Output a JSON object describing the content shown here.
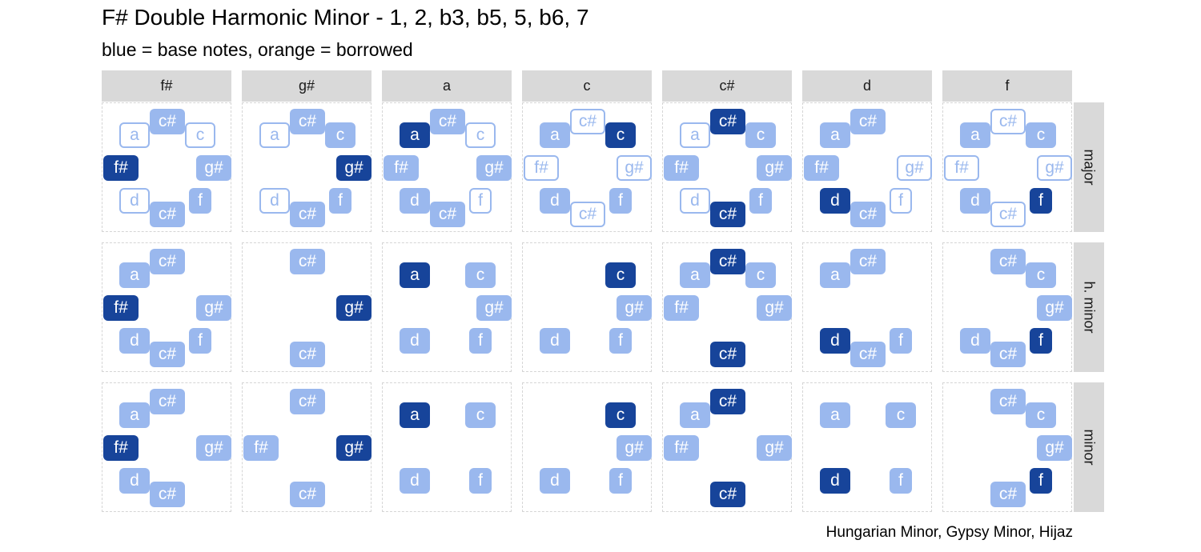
{
  "title": "F# Double Harmonic Minor - 1, 2, b3, b5, 5, b6, 7",
  "subtitle": "blue = base notes, orange = borrowed",
  "caption": "Hungarian Minor, Gypsy Minor, Hijaz",
  "colors": {
    "tonic": "#17449a",
    "base": "#9ab8ee",
    "outline_border": "#9ab8ee",
    "strip": "#d9d9d9"
  },
  "columns": [
    "f#",
    "g#",
    "a",
    "c",
    "c#",
    "d",
    "f"
  ],
  "rows": [
    "major",
    "h. minor",
    "minor"
  ],
  "panels": [
    [
      [
        [
          "a",
          "outline"
        ],
        [
          "c#",
          "base"
        ],
        [
          "c",
          "outline"
        ],
        [
          "f#",
          "tonic"
        ],
        [
          "g#",
          "base"
        ],
        [
          "d",
          "outline"
        ],
        [
          "f",
          "base"
        ],
        [
          "c#",
          "base"
        ]
      ],
      [
        [
          "a",
          "outline"
        ],
        [
          "c#",
          "base"
        ],
        [
          "c",
          "base"
        ],
        [
          "g#",
          "tonic"
        ],
        [
          "d",
          "outline"
        ],
        [
          "f",
          "base"
        ],
        [
          "c#",
          "base"
        ]
      ],
      [
        [
          "a",
          "tonic"
        ],
        [
          "c#",
          "base"
        ],
        [
          "c",
          "outline"
        ],
        [
          "f#",
          "base"
        ],
        [
          "g#",
          "base"
        ],
        [
          "d",
          "base"
        ],
        [
          "f",
          "outline"
        ],
        [
          "c#",
          "base"
        ]
      ],
      [
        [
          "a",
          "base"
        ],
        [
          "c#",
          "outline"
        ],
        [
          "c",
          "tonic"
        ],
        [
          "f#",
          "outline"
        ],
        [
          "g#",
          "outline"
        ],
        [
          "d",
          "base"
        ],
        [
          "f",
          "base"
        ],
        [
          "c#",
          "outline"
        ]
      ],
      [
        [
          "a",
          "outline"
        ],
        [
          "c#",
          "tonic"
        ],
        [
          "c",
          "base"
        ],
        [
          "f#",
          "base"
        ],
        [
          "g#",
          "base"
        ],
        [
          "d",
          "outline"
        ],
        [
          "f",
          "base"
        ],
        [
          "c#",
          "tonic"
        ]
      ],
      [
        [
          "a",
          "base"
        ],
        [
          "c#",
          "base"
        ],
        [
          "f#",
          "base"
        ],
        [
          "g#",
          "outline"
        ],
        [
          "d",
          "tonic"
        ],
        [
          "f",
          "outline"
        ],
        [
          "c#",
          "base"
        ]
      ],
      [
        [
          "a",
          "base"
        ],
        [
          "c#",
          "outline"
        ],
        [
          "c",
          "base"
        ],
        [
          "f#",
          "outline"
        ],
        [
          "g#",
          "outline"
        ],
        [
          "d",
          "base"
        ],
        [
          "f",
          "tonic"
        ],
        [
          "c#",
          "outline"
        ]
      ]
    ],
    [
      [
        [
          "a",
          "base"
        ],
        [
          "c#",
          "base"
        ],
        [
          "f#",
          "tonic"
        ],
        [
          "g#",
          "base"
        ],
        [
          "d",
          "base"
        ],
        [
          "f",
          "base"
        ],
        [
          "c#",
          "base"
        ]
      ],
      [
        [
          "c#",
          "base"
        ],
        [
          "g#",
          "tonic"
        ],
        [
          "c#",
          "base"
        ]
      ],
      [
        [
          "a",
          "tonic"
        ],
        [
          "c",
          "base"
        ],
        [
          "g#",
          "base"
        ],
        [
          "d",
          "base"
        ],
        [
          "f",
          "base"
        ]
      ],
      [
        [
          "c",
          "tonic"
        ],
        [
          "g#",
          "base"
        ],
        [
          "d",
          "base"
        ],
        [
          "f",
          "base"
        ]
      ],
      [
        [
          "a",
          "base"
        ],
        [
          "c#",
          "tonic"
        ],
        [
          "c",
          "base"
        ],
        [
          "f#",
          "base"
        ],
        [
          "g#",
          "base"
        ],
        [
          "c#",
          "tonic"
        ]
      ],
      [
        [
          "a",
          "base"
        ],
        [
          "c#",
          "base"
        ],
        [
          "d",
          "tonic"
        ],
        [
          "f",
          "base"
        ],
        [
          "c#",
          "base"
        ]
      ],
      [
        [
          "c#",
          "base"
        ],
        [
          "c",
          "base"
        ],
        [
          "g#",
          "base"
        ],
        [
          "d",
          "base"
        ],
        [
          "f",
          "tonic"
        ],
        [
          "c#",
          "base"
        ]
      ]
    ],
    [
      [
        [
          "a",
          "base"
        ],
        [
          "c#",
          "base"
        ],
        [
          "f#",
          "tonic"
        ],
        [
          "g#",
          "base"
        ],
        [
          "d",
          "base"
        ],
        [
          "c#",
          "base"
        ]
      ],
      [
        [
          "c#",
          "base"
        ],
        [
          "f#",
          "base"
        ],
        [
          "g#",
          "tonic"
        ],
        [
          "c#",
          "base"
        ]
      ],
      [
        [
          "a",
          "tonic"
        ],
        [
          "c",
          "base"
        ],
        [
          "d",
          "base"
        ],
        [
          "f",
          "base"
        ]
      ],
      [
        [
          "c",
          "tonic"
        ],
        [
          "g#",
          "base"
        ],
        [
          "d",
          "base"
        ],
        [
          "f",
          "base"
        ]
      ],
      [
        [
          "a",
          "base"
        ],
        [
          "c#",
          "tonic"
        ],
        [
          "f#",
          "base"
        ],
        [
          "g#",
          "base"
        ],
        [
          "c#",
          "tonic"
        ]
      ],
      [
        [
          "a",
          "base"
        ],
        [
          "c",
          "base"
        ],
        [
          "d",
          "tonic"
        ],
        [
          "f",
          "base"
        ]
      ],
      [
        [
          "c#",
          "base"
        ],
        [
          "c",
          "base"
        ],
        [
          "g#",
          "base"
        ],
        [
          "f",
          "tonic"
        ],
        [
          "c#",
          "base"
        ]
      ]
    ]
  ]
}
